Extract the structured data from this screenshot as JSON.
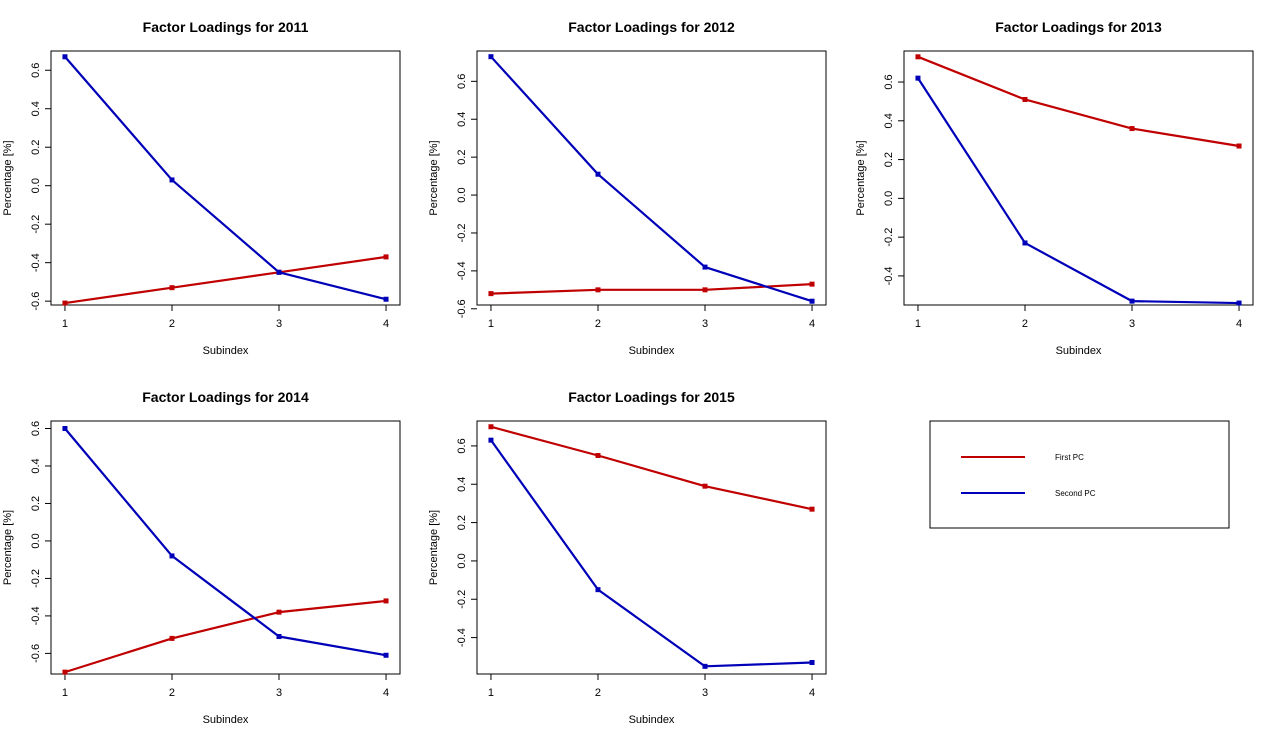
{
  "colors": {
    "first_pc": "#C00000",
    "second_pc": "#0000B8"
  },
  "legend": {
    "entries": [
      "First PC",
      "Second PC"
    ]
  },
  "chart_data": [
    {
      "type": "line",
      "title": "Factor Loadings for 2011",
      "xlabel": "Subindex",
      "ylabel": "Percentage [%]",
      "x": [
        1,
        2,
        3,
        4
      ],
      "xticks": [
        "1",
        "2",
        "3",
        "4"
      ],
      "yticks": [
        "-0.6",
        "-0.4",
        "-0.2",
        "0.0",
        "0.2",
        "0.4",
        "0.6"
      ],
      "ylim": [
        -0.62,
        0.7
      ],
      "series": [
        {
          "values": [
            -0.61,
            -0.53,
            -0.45,
            -0.37
          ],
          "color": "#C00000"
        },
        {
          "values": [
            0.67,
            0.03,
            -0.45,
            -0.59
          ],
          "color": "#0000B8"
        }
      ]
    },
    {
      "type": "line",
      "title": "Factor Loadings for 2012",
      "xlabel": "Subindex",
      "ylabel": "Percentage [%]",
      "x": [
        1,
        2,
        3,
        4
      ],
      "xticks": [
        "1",
        "2",
        "3",
        "4"
      ],
      "yticks": [
        "-0.6",
        "-0.4",
        "-0.2",
        "0.0",
        "0.2",
        "0.4",
        "0.6"
      ],
      "ylim": [
        -0.58,
        0.76
      ],
      "series": [
        {
          "values": [
            -0.52,
            -0.5,
            -0.5,
            -0.47
          ],
          "color": "#C00000"
        },
        {
          "values": [
            0.73,
            0.11,
            -0.38,
            -0.56
          ],
          "color": "#0000B8"
        }
      ]
    },
    {
      "type": "line",
      "title": "Factor Loadings for 2013",
      "xlabel": "Subindex",
      "ylabel": "Percentage [%]",
      "x": [
        1,
        2,
        3,
        4
      ],
      "xticks": [
        "1",
        "2",
        "3",
        "4"
      ],
      "yticks": [
        "-0.4",
        "-0.2",
        "0.0",
        "0.2",
        "0.4",
        "0.6"
      ],
      "ylim": [
        -0.55,
        0.76
      ],
      "series": [
        {
          "values": [
            0.73,
            0.51,
            0.36,
            0.27
          ],
          "color": "#C00000"
        },
        {
          "values": [
            0.62,
            -0.23,
            -0.53,
            -0.54
          ],
          "color": "#0000B8"
        }
      ]
    },
    {
      "type": "line",
      "title": "Factor Loadings for 2014",
      "xlabel": "Subindex",
      "ylabel": "Percentage [%]",
      "x": [
        1,
        2,
        3,
        4
      ],
      "xticks": [
        "1",
        "2",
        "3",
        "4"
      ],
      "yticks": [
        "-0.6",
        "-0.4",
        "-0.2",
        "0.0",
        "0.2",
        "0.4",
        "0.6"
      ],
      "ylim": [
        -0.71,
        0.64
      ],
      "series": [
        {
          "values": [
            -0.7,
            -0.52,
            -0.38,
            -0.32
          ],
          "color": "#C00000"
        },
        {
          "values": [
            0.6,
            -0.08,
            -0.51,
            -0.61
          ],
          "color": "#0000B8"
        }
      ]
    },
    {
      "type": "line",
      "title": "Factor Loadings for 2015",
      "xlabel": "Subindex",
      "ylabel": "Percentage [%]",
      "x": [
        1,
        2,
        3,
        4
      ],
      "xticks": [
        "1",
        "2",
        "3",
        "4"
      ],
      "yticks": [
        "-0.4",
        "-0.2",
        "0.0",
        "0.2",
        "0.4",
        "0.6"
      ],
      "ylim": [
        -0.59,
        0.73
      ],
      "series": [
        {
          "values": [
            0.7,
            0.55,
            0.39,
            0.27
          ],
          "color": "#C00000"
        },
        {
          "values": [
            0.63,
            -0.15,
            -0.55,
            -0.53
          ],
          "color": "#0000B8"
        }
      ]
    }
  ]
}
